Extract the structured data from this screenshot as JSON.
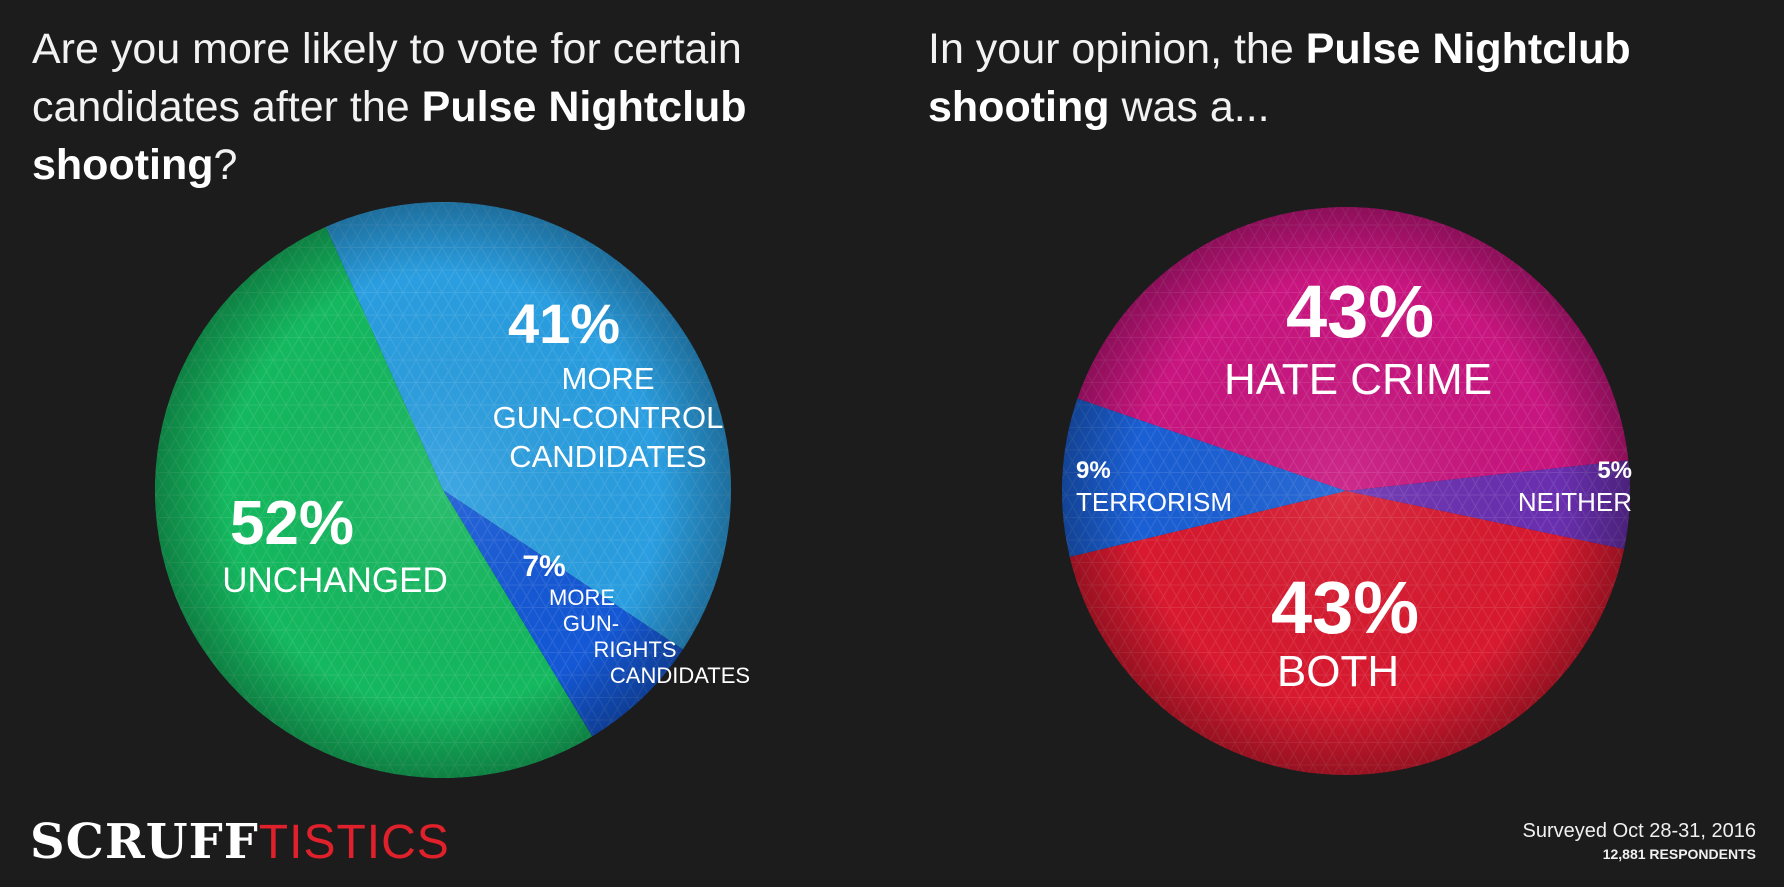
{
  "left_title": {
    "pre": "Are you more likely to vote for certain candidates after the ",
    "bold": "Pulse Nightclub shooting",
    "post": "?"
  },
  "right_title": {
    "pre": "In your opinion, the ",
    "bold": "Pulse Nightclub shooting",
    "post": " was a..."
  },
  "chart_data": [
    {
      "type": "pie",
      "title": "Are you more likely to vote for certain candidates after the Pulse Nightclub shooting?",
      "slices": [
        {
          "label": "MORE GUN-CONTROL CANDIDATES",
          "value": 41,
          "display": "41%",
          "color": "#2a9ee0",
          "label_lines": [
            "MORE",
            "GUN-CONTROL",
            "CANDIDATES"
          ]
        },
        {
          "label": "MORE GUN-RIGHTS CANDIDATES",
          "value": 7,
          "display": "7%",
          "color": "#1458d6",
          "label_lines": [
            "MORE",
            "GUN-",
            "RIGHTS",
            "CANDIDATES"
          ]
        },
        {
          "label": "UNCHANGED",
          "value": 52,
          "display": "52%",
          "color": "#14b85f",
          "label_lines": [
            "UNCHANGED"
          ]
        }
      ]
    },
    {
      "type": "pie",
      "title": "In your opinion, the Pulse Nightclub shooting was a...",
      "slices": [
        {
          "label": "HATE CRIME",
          "value": 43,
          "display": "43%",
          "color": "#c8157f",
          "label_lines": [
            "HATE CRIME"
          ]
        },
        {
          "label": "NEITHER",
          "value": 5,
          "display": "5%",
          "color": "#6a2fb0",
          "label_lines": [
            "NEITHER"
          ]
        },
        {
          "label": "BOTH",
          "value": 43,
          "display": "43%",
          "color": "#d8192f",
          "label_lines": [
            "BOTH"
          ]
        },
        {
          "label": "TERRORISM",
          "value": 9,
          "display": "9%",
          "color": "#1a5fd4",
          "label_lines": [
            "TERRORISM"
          ]
        }
      ]
    }
  ],
  "brand": {
    "part1": "SCRUFF",
    "part2": "TISTICS"
  },
  "survey": {
    "date": "Surveyed Oct 28-31, 2016",
    "respondents": "12,881 RESPONDENTS"
  }
}
